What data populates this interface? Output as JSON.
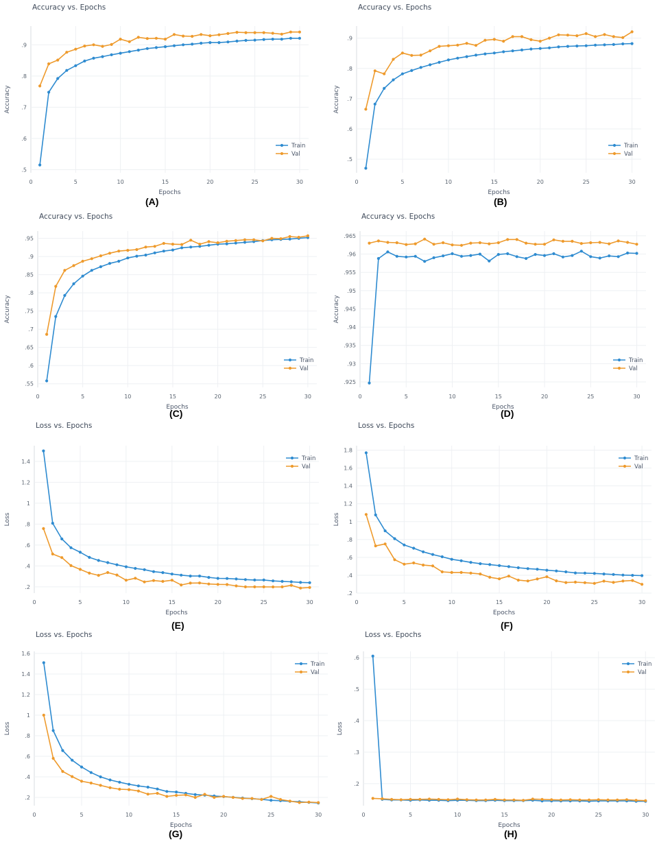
{
  "colors": {
    "train": "#2e8bd0",
    "val": "#ee9a2c",
    "grid": "#eef0f3",
    "zero_line": "#d8dce2"
  },
  "chart_data": [
    {
      "panel": "A",
      "type": "line",
      "caption": "(A)",
      "title": "Accuracy vs. Epochs",
      "xlabel": "Epochs",
      "ylabel": "Accuracy",
      "xlim": [
        0,
        31
      ],
      "ylim": [
        0.49,
        0.96
      ],
      "xticks": [
        0,
        5,
        10,
        15,
        20,
        25,
        30
      ],
      "yticks": [
        0.5,
        0.6,
        0.7,
        0.8,
        0.9
      ],
      "grid": true,
      "legend_position": "bottom-right",
      "x": [
        1,
        2,
        3,
        4,
        5,
        6,
        7,
        8,
        9,
        10,
        11,
        12,
        13,
        14,
        15,
        16,
        17,
        18,
        19,
        20,
        21,
        22,
        23,
        24,
        25,
        26,
        27,
        28,
        29,
        30
      ],
      "series": [
        {
          "name": "Train",
          "values": [
            0.515,
            0.748,
            0.792,
            0.818,
            0.833,
            0.848,
            0.857,
            0.862,
            0.868,
            0.873,
            0.878,
            0.883,
            0.888,
            0.891,
            0.894,
            0.897,
            0.9,
            0.902,
            0.905,
            0.907,
            0.907,
            0.909,
            0.912,
            0.914,
            0.915,
            0.917,
            0.918,
            0.918,
            0.921,
            0.921
          ]
        },
        {
          "name": "Val",
          "values": [
            0.768,
            0.839,
            0.851,
            0.876,
            0.886,
            0.896,
            0.9,
            0.895,
            0.901,
            0.918,
            0.91,
            0.924,
            0.92,
            0.921,
            0.918,
            0.933,
            0.928,
            0.927,
            0.933,
            0.929,
            0.932,
            0.936,
            0.94,
            0.939,
            0.939,
            0.939,
            0.937,
            0.934,
            0.941,
            0.941
          ]
        }
      ]
    },
    {
      "panel": "B",
      "type": "line",
      "caption": "(B)",
      "title": "Accuracy vs. Epochs",
      "xlabel": "Epochs",
      "ylabel": "Accuracy",
      "xlim": [
        0,
        31
      ],
      "ylim": [
        0.455,
        0.94
      ],
      "xticks": [
        0,
        5,
        10,
        15,
        20,
        25,
        30
      ],
      "yticks": [
        0.5,
        0.6,
        0.7,
        0.8,
        0.9
      ],
      "grid": true,
      "legend_position": "bottom-right",
      "x": [
        1,
        2,
        3,
        4,
        5,
        6,
        7,
        8,
        9,
        10,
        11,
        12,
        13,
        14,
        15,
        16,
        17,
        18,
        19,
        20,
        21,
        22,
        23,
        24,
        25,
        26,
        27,
        28,
        29,
        30
      ],
      "series": [
        {
          "name": "Train",
          "values": [
            0.47,
            0.682,
            0.734,
            0.762,
            0.782,
            0.793,
            0.803,
            0.812,
            0.82,
            0.828,
            0.834,
            0.839,
            0.844,
            0.848,
            0.851,
            0.855,
            0.858,
            0.861,
            0.864,
            0.866,
            0.868,
            0.871,
            0.873,
            0.874,
            0.875,
            0.877,
            0.878,
            0.879,
            0.881,
            0.882
          ]
        },
        {
          "name": "Val",
          "values": [
            0.665,
            0.792,
            0.782,
            0.83,
            0.851,
            0.843,
            0.844,
            0.858,
            0.873,
            0.875,
            0.877,
            0.883,
            0.876,
            0.893,
            0.896,
            0.89,
            0.905,
            0.905,
            0.895,
            0.89,
            0.9,
            0.911,
            0.91,
            0.908,
            0.915,
            0.905,
            0.912,
            0.905,
            0.902,
            0.921
          ]
        }
      ]
    },
    {
      "panel": "C",
      "type": "line",
      "caption": "(C)",
      "title": "Accuracy vs. Epochs",
      "xlabel": "Epochs",
      "ylabel": "Accuracy",
      "xlim": [
        0,
        31
      ],
      "ylim": [
        0.54,
        0.97
      ],
      "xticks": [
        0,
        5,
        10,
        15,
        20,
        25,
        30
      ],
      "yticks": [
        0.55,
        0.6,
        0.65,
        0.7,
        0.75,
        0.8,
        0.85,
        0.9,
        0.95
      ],
      "grid": true,
      "legend_position": "bottom-right",
      "x": [
        1,
        2,
        3,
        4,
        5,
        6,
        7,
        8,
        9,
        10,
        11,
        12,
        13,
        14,
        15,
        16,
        17,
        18,
        19,
        20,
        21,
        22,
        23,
        24,
        25,
        26,
        27,
        28,
        29,
        30
      ],
      "series": [
        {
          "name": "Train",
          "values": [
            0.558,
            0.735,
            0.793,
            0.825,
            0.846,
            0.862,
            0.872,
            0.881,
            0.887,
            0.896,
            0.901,
            0.904,
            0.91,
            0.915,
            0.918,
            0.924,
            0.926,
            0.928,
            0.931,
            0.934,
            0.935,
            0.937,
            0.939,
            0.941,
            0.944,
            0.946,
            0.947,
            0.948,
            0.95,
            0.952
          ]
        },
        {
          "name": "Val",
          "values": [
            0.686,
            0.818,
            0.862,
            0.875,
            0.887,
            0.894,
            0.902,
            0.909,
            0.915,
            0.917,
            0.919,
            0.926,
            0.928,
            0.936,
            0.934,
            0.933,
            0.945,
            0.934,
            0.941,
            0.938,
            0.942,
            0.944,
            0.946,
            0.946,
            0.943,
            0.95,
            0.949,
            0.955,
            0.953,
            0.957
          ]
        }
      ]
    },
    {
      "panel": "D",
      "type": "line",
      "caption": "(D)",
      "title": "Accuracy vs. Epochs",
      "xlabel": "Epochs",
      "ylabel": "Accuracy",
      "xlim": [
        0,
        31
      ],
      "ylim": [
        0.9235,
        0.9663
      ],
      "xticks": [
        0,
        5,
        10,
        15,
        20,
        25,
        30
      ],
      "yticks": [
        0.925,
        0.93,
        0.935,
        0.94,
        0.945,
        0.95,
        0.955,
        0.96,
        0.965
      ],
      "grid": true,
      "legend_position": "bottom-right",
      "x": [
        1,
        2,
        3,
        4,
        5,
        6,
        7,
        8,
        9,
        10,
        11,
        12,
        13,
        14,
        15,
        16,
        17,
        18,
        19,
        20,
        21,
        22,
        23,
        24,
        25,
        26,
        27,
        28,
        29,
        30
      ],
      "series": [
        {
          "name": "Train",
          "values": [
            0.9247,
            0.9588,
            0.9606,
            0.9594,
            0.9592,
            0.9594,
            0.958,
            0.959,
            0.9595,
            0.9601,
            0.9594,
            0.9596,
            0.96,
            0.9581,
            0.9599,
            0.9601,
            0.9593,
            0.9588,
            0.9599,
            0.9596,
            0.9601,
            0.9592,
            0.9596,
            0.9608,
            0.9593,
            0.9589,
            0.9595,
            0.9593,
            0.9603,
            0.9602
          ]
        },
        {
          "name": "Val",
          "values": [
            0.963,
            0.9636,
            0.9632,
            0.9631,
            0.9626,
            0.9628,
            0.9641,
            0.9627,
            0.9631,
            0.9625,
            0.9624,
            0.963,
            0.9631,
            0.9628,
            0.9631,
            0.964,
            0.964,
            0.963,
            0.9627,
            0.9627,
            0.9639,
            0.9635,
            0.9635,
            0.9629,
            0.9631,
            0.9632,
            0.9628,
            0.9636,
            0.9632,
            0.9627
          ]
        }
      ]
    },
    {
      "panel": "E",
      "type": "line",
      "caption": "(E)",
      "title": "Loss vs. Epochs",
      "xlabel": "Epochs",
      "ylabel": "Loss",
      "xlim": [
        0,
        31
      ],
      "ylim": [
        0.14,
        1.55
      ],
      "xticks": [
        0,
        5,
        10,
        15,
        20,
        25,
        30
      ],
      "yticks": [
        0.2,
        0.4,
        0.6,
        0.8,
        1,
        1.2,
        1.4
      ],
      "grid": true,
      "legend_position": "top-right",
      "x": [
        1,
        2,
        3,
        4,
        5,
        6,
        7,
        8,
        9,
        10,
        11,
        12,
        13,
        14,
        15,
        16,
        17,
        18,
        19,
        20,
        21,
        22,
        23,
        24,
        25,
        26,
        27,
        28,
        29,
        30
      ],
      "series": [
        {
          "name": "Train",
          "values": [
            1.5,
            0.808,
            0.658,
            0.574,
            0.531,
            0.482,
            0.452,
            0.432,
            0.411,
            0.392,
            0.376,
            0.364,
            0.345,
            0.336,
            0.322,
            0.312,
            0.303,
            0.303,
            0.29,
            0.281,
            0.28,
            0.275,
            0.269,
            0.265,
            0.265,
            0.257,
            0.252,
            0.248,
            0.242,
            0.24
          ]
        },
        {
          "name": "Val",
          "values": [
            0.757,
            0.514,
            0.48,
            0.403,
            0.367,
            0.331,
            0.31,
            0.337,
            0.313,
            0.263,
            0.282,
            0.247,
            0.26,
            0.252,
            0.263,
            0.218,
            0.236,
            0.237,
            0.227,
            0.223,
            0.222,
            0.209,
            0.2,
            0.2,
            0.2,
            0.199,
            0.2,
            0.215,
            0.188,
            0.194
          ]
        }
      ]
    },
    {
      "panel": "F",
      "type": "line",
      "caption": "(F)",
      "title": "Loss vs. Epochs",
      "xlabel": "Epochs",
      "ylabel": "Loss",
      "xlim": [
        0,
        31
      ],
      "ylim": [
        0.2,
        1.85
      ],
      "xticks": [
        0,
        5,
        10,
        15,
        20,
        25,
        30
      ],
      "yticks": [
        0.2,
        0.4,
        0.6,
        0.8,
        1,
        1.2,
        1.4,
        1.6,
        1.8
      ],
      "grid": true,
      "legend_position": "top-right",
      "x": [
        1,
        2,
        3,
        4,
        5,
        6,
        7,
        8,
        9,
        10,
        11,
        12,
        13,
        14,
        15,
        16,
        17,
        18,
        19,
        20,
        21,
        22,
        23,
        24,
        25,
        26,
        27,
        28,
        29,
        30
      ],
      "series": [
        {
          "name": "Train",
          "values": [
            1.77,
            1.075,
            0.897,
            0.809,
            0.739,
            0.703,
            0.662,
            0.632,
            0.607,
            0.578,
            0.562,
            0.544,
            0.529,
            0.519,
            0.508,
            0.496,
            0.484,
            0.474,
            0.467,
            0.456,
            0.448,
            0.438,
            0.426,
            0.424,
            0.42,
            0.414,
            0.409,
            0.402,
            0.399,
            0.396
          ]
        },
        {
          "name": "Val",
          "values": [
            1.08,
            0.728,
            0.75,
            0.574,
            0.524,
            0.538,
            0.514,
            0.505,
            0.438,
            0.431,
            0.431,
            0.424,
            0.414,
            0.377,
            0.36,
            0.39,
            0.345,
            0.336,
            0.358,
            0.383,
            0.337,
            0.318,
            0.323,
            0.317,
            0.309,
            0.334,
            0.32,
            0.335,
            0.341,
            0.298
          ]
        }
      ]
    },
    {
      "panel": "G",
      "type": "line",
      "caption": "(G)",
      "title": "Loss vs. Epochs",
      "xlabel": "Epochs",
      "ylabel": "Loss",
      "xlim": [
        0,
        31
      ],
      "ylim": [
        0.12,
        1.62
      ],
      "xticks": [
        0,
        5,
        10,
        15,
        20,
        25,
        30
      ],
      "yticks": [
        0.2,
        0.4,
        0.6,
        0.8,
        1,
        1.2,
        1.4,
        1.6
      ],
      "grid": true,
      "legend_position": "top-right",
      "x": [
        1,
        2,
        3,
        4,
        5,
        6,
        7,
        8,
        9,
        10,
        11,
        12,
        13,
        14,
        15,
        16,
        17,
        18,
        19,
        20,
        21,
        22,
        23,
        24,
        25,
        26,
        27,
        28,
        29,
        30
      ],
      "series": [
        {
          "name": "Train",
          "values": [
            1.51,
            0.85,
            0.656,
            0.562,
            0.496,
            0.442,
            0.4,
            0.37,
            0.348,
            0.328,
            0.312,
            0.3,
            0.282,
            0.258,
            0.253,
            0.24,
            0.228,
            0.223,
            0.214,
            0.208,
            0.201,
            0.194,
            0.188,
            0.181,
            0.172,
            0.168,
            0.162,
            0.158,
            0.152,
            0.146
          ]
        },
        {
          "name": "Val",
          "values": [
            1.0,
            0.58,
            0.453,
            0.403,
            0.357,
            0.34,
            0.317,
            0.295,
            0.28,
            0.276,
            0.263,
            0.232,
            0.24,
            0.21,
            0.22,
            0.225,
            0.2,
            0.23,
            0.2,
            0.21,
            0.2,
            0.19,
            0.19,
            0.18,
            0.21,
            0.18,
            0.165,
            0.15,
            0.155,
            0.15
          ]
        }
      ]
    },
    {
      "panel": "H",
      "type": "line",
      "caption": "(H)",
      "title": "Loss vs. Epochs",
      "xlabel": "Epochs",
      "ylabel": "Loss",
      "xlim": [
        0,
        31
      ],
      "ylim": [
        0.13,
        0.62
      ],
      "xticks": [
        0,
        5,
        10,
        15,
        20,
        25,
        30
      ],
      "yticks": [
        0.2,
        0.3,
        0.4,
        0.5,
        0.6
      ],
      "grid": true,
      "legend_position": "top-right",
      "x": [
        1,
        2,
        3,
        4,
        5,
        6,
        7,
        8,
        9,
        10,
        11,
        12,
        13,
        14,
        15,
        16,
        17,
        18,
        19,
        20,
        21,
        22,
        23,
        24,
        25,
        26,
        27,
        28,
        29,
        30
      ],
      "series": [
        {
          "name": "Train",
          "values": [
            0.605,
            0.15,
            0.148,
            0.148,
            0.147,
            0.148,
            0.147,
            0.147,
            0.146,
            0.147,
            0.147,
            0.146,
            0.146,
            0.147,
            0.146,
            0.146,
            0.146,
            0.147,
            0.145,
            0.145,
            0.145,
            0.145,
            0.145,
            0.144,
            0.145,
            0.145,
            0.145,
            0.145,
            0.144,
            0.144
          ]
        },
        {
          "name": "Val",
          "values": [
            0.153,
            0.152,
            0.15,
            0.149,
            0.15,
            0.15,
            0.151,
            0.15,
            0.149,
            0.151,
            0.149,
            0.148,
            0.148,
            0.15,
            0.148,
            0.148,
            0.147,
            0.151,
            0.15,
            0.149,
            0.148,
            0.149,
            0.148,
            0.148,
            0.149,
            0.148,
            0.148,
            0.149,
            0.147,
            0.146
          ]
        }
      ]
    }
  ]
}
